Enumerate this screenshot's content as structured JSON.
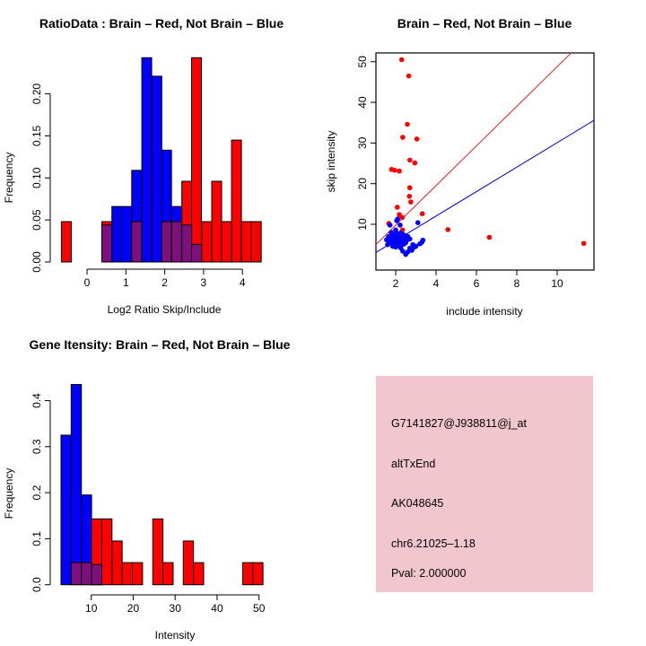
{
  "colors": {
    "red": "#FF0000",
    "blue": "#0000FF",
    "purple": "#7D107D",
    "blue_line": "#0000CD",
    "red_line": "#E82020",
    "pink_box": "#F2C6CE",
    "pval_red": "#B22222",
    "black": "#000000"
  },
  "chart_data": [
    {
      "id": "ratio_hist",
      "type": "bar",
      "title": "RatioData : Brain – Red, Not Brain – Blue",
      "xlabel": "Log2 Ratio Skip/Include",
      "ylabel": "Frequency",
      "x_ticks": [
        0,
        1,
        2,
        3,
        4
      ],
      "y_ticks": [
        0.0,
        0.05,
        0.1,
        0.15,
        0.2
      ],
      "y_tick_labels": [
        "0.00",
        "0.05",
        "0.10",
        "0.15",
        "0.20"
      ],
      "xlim": [
        -0.75,
        4.55
      ],
      "ylim": [
        0,
        0.243
      ],
      "bin_width": 0.254,
      "grid": false,
      "series": [
        {
          "name": "not_brain_blue",
          "color_key": "blue",
          "bars": [
            {
              "x": 0.64,
              "h": 0.066
            },
            {
              "x": 0.89,
              "h": 0.066
            },
            {
              "x": 1.15,
              "h": 0.109
            },
            {
              "x": 1.41,
              "h": 0.243
            },
            {
              "x": 1.67,
              "h": 0.221
            },
            {
              "x": 1.92,
              "h": 0.133
            },
            {
              "x": 2.18,
              "h": 0.066
            }
          ]
        },
        {
          "name": "brain_red",
          "color_key": "red",
          "bars": [
            {
              "x": -0.66,
              "h": 0.048
            },
            {
              "x": 0.38,
              "h": 0.048
            },
            {
              "x": 2.44,
              "h": 0.096
            },
            {
              "x": 2.69,
              "h": 0.243
            },
            {
              "x": 2.95,
              "h": 0.048
            },
            {
              "x": 3.21,
              "h": 0.096
            },
            {
              "x": 3.46,
              "h": 0.048
            },
            {
              "x": 3.72,
              "h": 0.145
            },
            {
              "x": 3.98,
              "h": 0.048
            },
            {
              "x": 4.23,
              "h": 0.048
            }
          ]
        },
        {
          "name": "overlap_purple",
          "color_key": "purple",
          "bars": [
            {
              "x": 0.38,
              "h": 0.044
            },
            {
              "x": 1.15,
              "h": 0.048
            },
            {
              "x": 1.92,
              "h": 0.048
            },
            {
              "x": 2.18,
              "h": 0.048
            },
            {
              "x": 2.44,
              "h": 0.044
            },
            {
              "x": 2.69,
              "h": 0.021
            }
          ]
        }
      ]
    },
    {
      "id": "intensity_scatter",
      "type": "scatter",
      "title": "Brain – Red, Not Brain – Blue",
      "xlabel": "include intensity",
      "ylabel": "skip intensity",
      "x_ticks": [
        2,
        4,
        6,
        8,
        10
      ],
      "y_ticks": [
        10,
        20,
        30,
        40,
        50
      ],
      "xlim": [
        1.0,
        11.8
      ],
      "ylim": [
        1.0,
        52.3
      ],
      "grid": false,
      "series": [
        {
          "name": "brain_red",
          "color_key": "red",
          "points": [
            [
              2.3,
              50.5
            ],
            [
              2.65,
              46.5
            ],
            [
              2.58,
              34.6
            ],
            [
              2.35,
              31.4
            ],
            [
              3.05,
              31.0
            ],
            [
              2.7,
              25.8
            ],
            [
              2.95,
              25.1
            ],
            [
              1.8,
              23.5
            ],
            [
              1.95,
              23.3
            ],
            [
              2.18,
              23.1
            ],
            [
              2.7,
              19.0
            ],
            [
              2.68,
              16.9
            ],
            [
              2.75,
              15.5
            ],
            [
              2.08,
              14.2
            ],
            [
              2.18,
              12.4
            ],
            [
              3.32,
              12.6
            ],
            [
              2.33,
              11.7
            ],
            [
              1.66,
              10.2
            ],
            [
              2.34,
              8.6
            ],
            [
              4.59,
              8.7
            ],
            [
              6.64,
              6.8
            ],
            [
              11.32,
              5.3
            ]
          ]
        },
        {
          "name": "not_brain_blue",
          "color_key": "blue",
          "points": [
            [
              1.55,
              6.2
            ],
            [
              1.6,
              5.0
            ],
            [
              1.65,
              7.0
            ],
            [
              1.7,
              6.1
            ],
            [
              1.72,
              9.8
            ],
            [
              1.75,
              5.4
            ],
            [
              1.78,
              8.0
            ],
            [
              1.8,
              6.8
            ],
            [
              1.85,
              4.6
            ],
            [
              1.85,
              7.5
            ],
            [
              1.9,
              5.9
            ],
            [
              1.9,
              6.6
            ],
            [
              1.95,
              5.2
            ],
            [
              1.95,
              7.1
            ],
            [
              2.0,
              4.4
            ],
            [
              2.0,
              6.3
            ],
            [
              2.0,
              8.6
            ],
            [
              2.05,
              5.7
            ],
            [
              2.05,
              7.8
            ],
            [
              2.05,
              10.9
            ],
            [
              2.1,
              4.9
            ],
            [
              2.1,
              6.9
            ],
            [
              2.1,
              11.3
            ],
            [
              2.15,
              6.0
            ],
            [
              2.15,
              7.3
            ],
            [
              2.2,
              5.3
            ],
            [
              2.2,
              6.5
            ],
            [
              2.22,
              9.8
            ],
            [
              2.25,
              4.2
            ],
            [
              2.25,
              7.9
            ],
            [
              2.3,
              5.8
            ],
            [
              2.3,
              6.9
            ],
            [
              2.35,
              3.4
            ],
            [
              2.35,
              6.2
            ],
            [
              2.4,
              5.1
            ],
            [
              2.4,
              7.4
            ],
            [
              2.45,
              6.7
            ],
            [
              2.5,
              2.6
            ],
            [
              2.5,
              5.5
            ],
            [
              2.55,
              6.1
            ],
            [
              2.6,
              3.2
            ],
            [
              2.6,
              7.0
            ],
            [
              2.7,
              4.1
            ],
            [
              2.7,
              6.4
            ],
            [
              2.8,
              3.6
            ],
            [
              2.85,
              5.0
            ],
            [
              2.9,
              4.3
            ],
            [
              3.0,
              4.6
            ],
            [
              3.1,
              10.4
            ],
            [
              3.2,
              5.2
            ],
            [
              3.3,
              5.6
            ],
            [
              3.35,
              6.1
            ]
          ]
        }
      ],
      "lines": [
        {
          "name": "brain_fit",
          "color_key": "red_line",
          "from": [
            1.0,
            4.9
          ],
          "to": [
            10.7,
            52.2
          ]
        },
        {
          "name": "not_brain_fit",
          "color_key": "blue_line",
          "from": [
            1.0,
            3.0
          ],
          "to": [
            11.8,
            35.5
          ]
        }
      ]
    },
    {
      "id": "gene_hist",
      "type": "bar",
      "title": "Gene Itensity: Brain – Red, Not Brain – Blue",
      "xlabel": "Intensity",
      "ylabel": "Frequency",
      "x_ticks": [
        10,
        20,
        30,
        40,
        50
      ],
      "y_ticks": [
        0.0,
        0.1,
        0.2,
        0.3,
        0.4
      ],
      "y_tick_labels": [
        "0.0",
        "0.1",
        "0.2",
        "0.3",
        "0.4"
      ],
      "xlim": [
        2.8,
        50.9
      ],
      "ylim": [
        0,
        0.437
      ],
      "bin_width": 2.43,
      "grid": false,
      "series": [
        {
          "name": "not_brain_blue",
          "color_key": "blue",
          "bars": [
            {
              "x": 2.79,
              "h": 0.325
            },
            {
              "x": 5.22,
              "h": 0.435
            },
            {
              "x": 7.65,
              "h": 0.195
            },
            {
              "x": 10.08,
              "h": 0.044
            }
          ]
        },
        {
          "name": "brain_red",
          "color_key": "red",
          "bars": [
            {
              "x": 10.08,
              "h": 0.143
            },
            {
              "x": 12.51,
              "h": 0.143
            },
            {
              "x": 14.94,
              "h": 0.095
            },
            {
              "x": 17.37,
              "h": 0.048
            },
            {
              "x": 19.8,
              "h": 0.048
            },
            {
              "x": 24.66,
              "h": 0.143
            },
            {
              "x": 27.09,
              "h": 0.048
            },
            {
              "x": 31.94,
              "h": 0.095
            },
            {
              "x": 34.37,
              "h": 0.048
            },
            {
              "x": 46.09,
              "h": 0.048
            },
            {
              "x": 48.51,
              "h": 0.048
            }
          ]
        },
        {
          "name": "overlap_purple",
          "color_key": "purple",
          "bars": [
            {
              "x": 5.22,
              "h": 0.048
            },
            {
              "x": 7.65,
              "h": 0.048
            },
            {
              "x": 10.08,
              "h": 0.044
            }
          ]
        }
      ]
    }
  ],
  "info_panel": {
    "lines": [
      "G7141827@J938811@j_at",
      "altTxEnd",
      "AK048645",
      "chr6.21025–1.18"
    ],
    "pval": "Pval: 2.000000"
  }
}
